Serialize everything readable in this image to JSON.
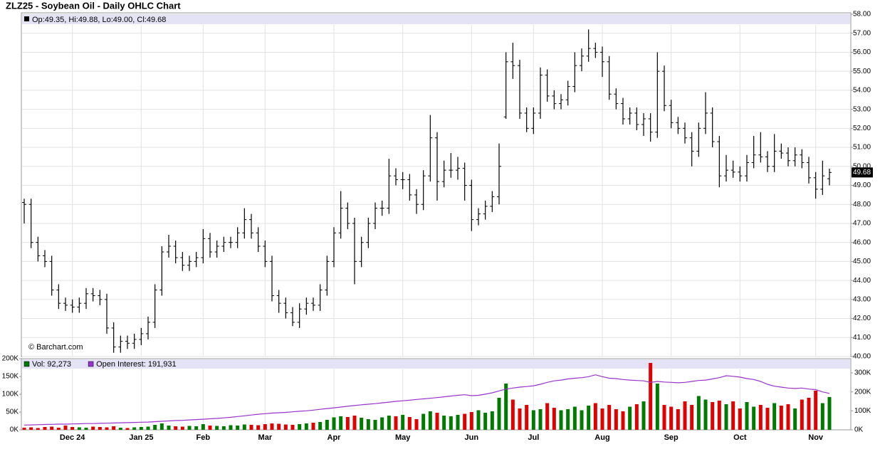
{
  "chart_data": [
    {
      "type": "ohlc",
      "title": "ZLZ25 - Soybean Oil - Daily OHLC Chart",
      "legend": "Op:49.35, Hi:49.88, Lo:49.00, Cl:49.68",
      "credit": "© Barchart.com",
      "color": "#000000",
      "categories": [
        null,
        null,
        null,
        null,
        null,
        null,
        null,
        "Dec 24",
        null,
        null,
        null,
        null,
        null,
        null,
        null,
        null,
        null,
        "Jan 25",
        null,
        null,
        null,
        null,
        null,
        null,
        null,
        null,
        "Feb",
        null,
        null,
        null,
        null,
        null,
        null,
        null,
        null,
        "Mar",
        null,
        null,
        null,
        null,
        null,
        null,
        null,
        null,
        null,
        "Apr",
        null,
        null,
        null,
        null,
        null,
        null,
        null,
        null,
        null,
        "May",
        null,
        null,
        null,
        null,
        null,
        null,
        null,
        null,
        null,
        "Jun",
        null,
        null,
        null,
        null,
        null,
        null,
        null,
        null,
        "Jul",
        null,
        null,
        null,
        null,
        null,
        null,
        null,
        null,
        null,
        "Aug",
        null,
        null,
        null,
        null,
        null,
        null,
        null,
        null,
        null,
        "Sep",
        null,
        null,
        null,
        null,
        null,
        null,
        null,
        null,
        null,
        "Oct",
        null,
        null,
        null,
        null,
        null,
        null,
        null,
        null,
        null,
        null,
        "Nov",
        null,
        null
      ],
      "open": [
        48.1,
        48.0,
        46.0,
        45.3,
        45.0,
        43.5,
        42.8,
        42.7,
        42.6,
        42.8,
        43.3,
        43.2,
        43.0,
        41.5,
        40.5,
        40.8,
        40.7,
        40.9,
        41.2,
        41.8,
        43.5,
        45.5,
        45.8,
        45.2,
        44.8,
        45.0,
        45.2,
        46.2,
        45.5,
        45.8,
        46.0,
        46.0,
        46.5,
        47.2,
        46.5,
        45.8,
        45.0,
        43.2,
        42.8,
        42.3,
        41.8,
        42.5,
        42.8,
        42.7,
        43.5,
        45.0,
        46.5,
        47.8,
        47.0,
        45.0,
        46.0,
        47.0,
        47.8,
        47.8,
        49.5,
        49.3,
        49.3,
        48.5,
        48.0,
        49.5,
        51.5,
        49.2,
        49.8,
        49.8,
        49.9,
        49.0,
        47.2,
        47.5,
        47.9,
        48.4,
        52.6,
        55.5,
        55.3,
        52.8,
        52.0,
        52.8,
        54.8,
        53.7,
        53.3,
        53.5,
        54.2,
        55.3,
        55.8,
        56.2,
        56.0,
        55.5,
        53.8,
        53.3,
        52.5,
        52.8,
        52.2,
        52.5,
        51.8,
        55.0,
        53.2,
        52.3,
        52.0,
        51.5,
        50.8,
        52.0,
        52.8,
        51.3,
        49.5,
        49.8,
        49.7,
        49.5,
        50.2,
        50.6,
        50.5,
        50.0,
        50.8,
        50.7,
        50.3,
        50.6,
        50.2,
        49.4,
        48.8,
        49.35
      ],
      "high": [
        48.3,
        48.3,
        46.3,
        45.6,
        45.3,
        43.8,
        43.1,
        43.0,
        43.1,
        43.6,
        43.6,
        43.5,
        43.3,
        41.8,
        41.1,
        41.1,
        41.2,
        41.5,
        42.1,
        43.8,
        45.8,
        46.4,
        46.1,
        45.5,
        45.3,
        45.5,
        46.7,
        46.5,
        46.1,
        46.3,
        46.3,
        46.8,
        47.8,
        47.5,
        46.8,
        46.1,
        45.3,
        43.5,
        43.1,
        42.6,
        42.8,
        43.1,
        43.1,
        43.8,
        45.3,
        46.8,
        48.7,
        48.1,
        47.3,
        46.3,
        47.3,
        48.1,
        48.2,
        50.4,
        49.9,
        49.7,
        49.6,
        48.8,
        49.8,
        52.7,
        51.8,
        50.3,
        50.7,
        50.5,
        50.2,
        49.3,
        47.8,
        48.2,
        48.7,
        51.2,
        56.0,
        56.5,
        55.6,
        53.1,
        53.1,
        55.2,
        55.1,
        54.0,
        53.8,
        54.5,
        56.0,
        56.2,
        57.2,
        56.5,
        56.3,
        55.8,
        54.1,
        53.6,
        53.1,
        53.1,
        52.8,
        52.8,
        56.0,
        55.3,
        53.5,
        52.6,
        52.3,
        51.8,
        52.3,
        53.9,
        53.1,
        51.6,
        50.6,
        50.3,
        50.0,
        50.6,
        51.6,
        51.8,
        50.8,
        51.7,
        51.2,
        51.0,
        51.0,
        50.9,
        50.5,
        49.7,
        50.3,
        49.88
      ],
      "low": [
        47.0,
        45.7,
        45.0,
        44.7,
        43.2,
        42.5,
        42.4,
        42.3,
        42.3,
        42.5,
        42.9,
        42.7,
        41.2,
        40.2,
        40.2,
        40.4,
        40.4,
        40.6,
        40.9,
        41.5,
        43.2,
        45.2,
        44.9,
        44.5,
        44.5,
        44.7,
        44.9,
        45.2,
        45.2,
        45.5,
        45.7,
        45.7,
        46.2,
        46.2,
        45.5,
        44.7,
        42.9,
        42.3,
        42.0,
        41.6,
        41.5,
        42.2,
        42.4,
        42.4,
        43.2,
        44.7,
        46.2,
        46.7,
        43.8,
        44.7,
        45.7,
        46.7,
        47.4,
        47.5,
        49.0,
        48.8,
        48.2,
        47.5,
        47.7,
        49.2,
        48.2,
        48.9,
        49.4,
        49.3,
        48.2,
        46.6,
        46.9,
        47.2,
        47.6,
        48.0,
        52.5,
        54.6,
        52.5,
        51.8,
        51.7,
        52.5,
        53.4,
        53.0,
        53.0,
        53.2,
        53.9,
        55.0,
        55.5,
        55.7,
        54.7,
        53.5,
        53.0,
        52.2,
        52.2,
        51.9,
        51.6,
        51.3,
        51.5,
        52.9,
        52.0,
        51.7,
        51.2,
        50.0,
        50.5,
        51.7,
        51.0,
        48.9,
        49.2,
        49.4,
        49.2,
        49.2,
        49.9,
        50.2,
        49.7,
        49.7,
        50.4,
        50.0,
        50.0,
        49.9,
        49.1,
        48.3,
        48.5,
        49.0
      ],
      "close": [
        48.0,
        46.0,
        45.3,
        45.0,
        43.5,
        42.8,
        42.7,
        42.6,
        42.8,
        43.3,
        43.2,
        43.0,
        41.5,
        40.5,
        40.8,
        40.7,
        40.9,
        41.2,
        41.8,
        43.5,
        45.5,
        45.8,
        45.2,
        44.8,
        45.0,
        45.2,
        46.2,
        45.5,
        45.8,
        46.0,
        46.0,
        46.5,
        47.2,
        46.5,
        45.8,
        45.0,
        43.2,
        42.8,
        42.3,
        41.8,
        42.5,
        42.8,
        42.7,
        43.5,
        45.0,
        46.5,
        47.8,
        47.0,
        45.0,
        46.0,
        47.0,
        47.8,
        47.8,
        49.5,
        49.3,
        49.3,
        48.5,
        48.0,
        49.5,
        51.5,
        49.2,
        49.8,
        49.8,
        49.9,
        49.0,
        47.2,
        47.5,
        47.9,
        48.4,
        50.0,
        55.5,
        55.3,
        52.8,
        52.0,
        52.8,
        54.8,
        53.7,
        53.3,
        53.5,
        54.2,
        55.3,
        55.8,
        56.2,
        56.0,
        55.5,
        53.8,
        53.3,
        52.5,
        52.8,
        52.2,
        52.5,
        51.8,
        55.0,
        53.2,
        52.3,
        52.0,
        51.5,
        50.8,
        52.0,
        52.8,
        51.3,
        49.5,
        49.8,
        49.7,
        49.5,
        50.2,
        50.6,
        50.5,
        50.0,
        50.8,
        50.7,
        50.3,
        50.6,
        50.2,
        49.4,
        48.8,
        49.5,
        49.68
      ],
      "ylim": [
        40,
        58
      ],
      "yticks": [
        {
          "value": 40,
          "label": "40.00"
        },
        {
          "value": 41,
          "label": "41.00"
        },
        {
          "value": 42,
          "label": "42.00"
        },
        {
          "value": 43,
          "label": "43.00"
        },
        {
          "value": 44,
          "label": "44.00"
        },
        {
          "value": 45,
          "label": "45.00"
        },
        {
          "value": 46,
          "label": "46.00"
        },
        {
          "value": 47,
          "label": "47.00"
        },
        {
          "value": 48,
          "label": "48.00"
        },
        {
          "value": 49,
          "label": "49.00"
        },
        {
          "value": 50,
          "label": "50.00"
        },
        {
          "value": 51,
          "label": "51.00"
        },
        {
          "value": 52,
          "label": "52.00"
        },
        {
          "value": 53,
          "label": "53.00"
        },
        {
          "value": 54,
          "label": "54.00"
        },
        {
          "value": 55,
          "label": "55.00"
        },
        {
          "value": 56,
          "label": "56.00"
        },
        {
          "value": 57,
          "label": "57.00"
        },
        {
          "value": 58,
          "label": "58.00"
        }
      ],
      "grid": true
    },
    {
      "type": "volume",
      "up_color": "#007a00",
      "down_color": "#e00000",
      "series": [
        {
          "name": "Vol: 92,273",
          "color": "#007a00",
          "values": [
            6000,
            7000,
            5000,
            8000,
            9000,
            6000,
            12000,
            8000,
            7000,
            6000,
            9000,
            8000,
            7000,
            10000,
            6000,
            5000,
            7000,
            8000,
            9000,
            14000,
            18000,
            12000,
            10000,
            9000,
            11000,
            10000,
            16000,
            12000,
            11000,
            10000,
            13000,
            12000,
            15000,
            14000,
            13000,
            16000,
            18000,
            17000,
            15000,
            14000,
            16000,
            18000,
            20000,
            22000,
            28000,
            35000,
            38000,
            36000,
            40000,
            34000,
            30000,
            28000,
            35000,
            40000,
            38000,
            42000,
            36000,
            30000,
            45000,
            52000,
            48000,
            40000,
            38000,
            42000,
            45000,
            50000,
            55000,
            48000,
            52000,
            90000,
            130000,
            85000,
            60000,
            70000,
            55000,
            58000,
            75000,
            62000,
            55000,
            58000,
            65000,
            55000,
            68000,
            75000,
            60000,
            70000,
            58000,
            52000,
            65000,
            72000,
            80000,
            188000,
            130000,
            70000,
            65000,
            58000,
            80000,
            70000,
            95000,
            85000,
            78000,
            82000,
            72000,
            80000,
            60000,
            78000,
            65000,
            70000,
            62000,
            75000,
            68000,
            72000,
            60000,
            85000,
            90000,
            110000,
            75000,
            92273
          ]
        },
        {
          "name": "Open Interest: 191,931",
          "color": "#9933cc",
          "axis": "y2",
          "values": [
            25000,
            26000,
            27000,
            28000,
            29000,
            30000,
            30000,
            31000,
            32000,
            33000,
            33000,
            34000,
            35000,
            36000,
            37000,
            38000,
            39000,
            40000,
            41000,
            43000,
            45000,
            47000,
            49000,
            50000,
            52000,
            54000,
            56000,
            58000,
            60000,
            63000,
            66000,
            70000,
            74000,
            78000,
            82000,
            85000,
            88000,
            90000,
            92000,
            95000,
            98000,
            100000,
            104000,
            108000,
            112000,
            116000,
            120000,
            124000,
            128000,
            132000,
            135000,
            138000,
            142000,
            146000,
            150000,
            153000,
            156000,
            160000,
            163000,
            166000,
            170000,
            174000,
            178000,
            182000,
            185000,
            180000,
            182000,
            188000,
            195000,
            205000,
            215000,
            220000,
            225000,
            228000,
            232000,
            240000,
            250000,
            258000,
            262000,
            268000,
            272000,
            275000,
            280000,
            290000,
            280000,
            272000,
            270000,
            265000,
            262000,
            260000,
            258000,
            250000,
            255000,
            252000,
            250000,
            248000,
            250000,
            255000,
            260000,
            262000,
            268000,
            275000,
            285000,
            282000,
            278000,
            270000,
            265000,
            255000,
            240000,
            230000,
            225000,
            220000,
            218000,
            220000,
            215000,
            212000,
            200000,
            191931
          ]
        }
      ],
      "ylim": [
        0,
        200000
      ],
      "yticks": [
        {
          "value": 0,
          "label": "0K"
        },
        {
          "value": 50000,
          "label": "50K"
        },
        {
          "value": 100000,
          "label": "100K"
        },
        {
          "value": 150000,
          "label": "150K"
        },
        {
          "value": 200000,
          "label": "200K"
        }
      ],
      "y2lim": [
        0,
        375000
      ],
      "y2ticks": [
        {
          "value": 0,
          "label": "0K"
        },
        {
          "value": 100000,
          "label": "100K"
        },
        {
          "value": 200000,
          "label": "200K"
        },
        {
          "value": 300000,
          "label": "300K"
        }
      ]
    }
  ]
}
